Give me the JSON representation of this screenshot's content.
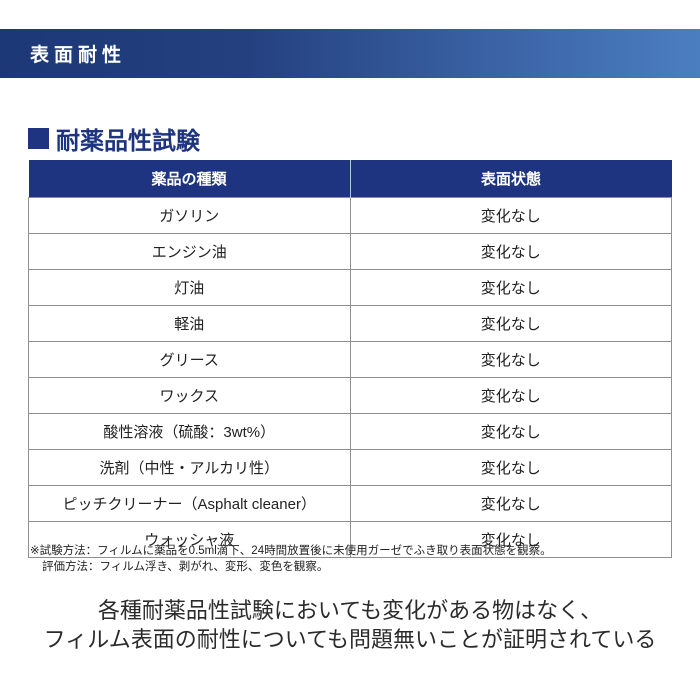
{
  "banner": {
    "title": "表面耐性"
  },
  "section": {
    "title": "耐薬品性試験"
  },
  "table": {
    "headers": [
      "薬品の種類",
      "表面状態"
    ],
    "rows": [
      {
        "chemical": "ガソリン",
        "status": "変化なし"
      },
      {
        "chemical": "エンジン油",
        "status": "変化なし"
      },
      {
        "chemical": "灯油",
        "status": "変化なし"
      },
      {
        "chemical": "軽油",
        "status": "変化なし"
      },
      {
        "chemical": "グリース",
        "status": "変化なし"
      },
      {
        "chemical": "ワックス",
        "status": "変化なし"
      },
      {
        "chemical": "酸性溶液（硫酸：3wt%）",
        "status": "変化なし"
      },
      {
        "chemical": "洗剤（中性・アルカリ性）",
        "status": "変化なし"
      },
      {
        "chemical": "ピッチクリーナー（Asphalt cleaner）",
        "status": "変化なし"
      },
      {
        "chemical": "ウォッシャ液",
        "status": "変化なし"
      }
    ]
  },
  "footnote": {
    "line1": "※試験方法：フィルムに薬品を0.5ml滴下、24時間放置後に未使用ガーゼでふき取り表面状態を観察。",
    "line2": "評価方法：フィルム浮き、剥がれ、変形、変色を観察。"
  },
  "conclusion": {
    "line1": "各種耐薬品性試験においても変化がある物はなく、",
    "line2": "フィルム表面の耐性についても問題無いことが証明されている"
  },
  "colors": {
    "banner_gradient_start": "#1c3876",
    "banner_gradient_end": "#4b7ec1",
    "table_header_bg": "#1e3480",
    "heading_color": "#1e3480",
    "body_border": "#8f8f8f"
  }
}
